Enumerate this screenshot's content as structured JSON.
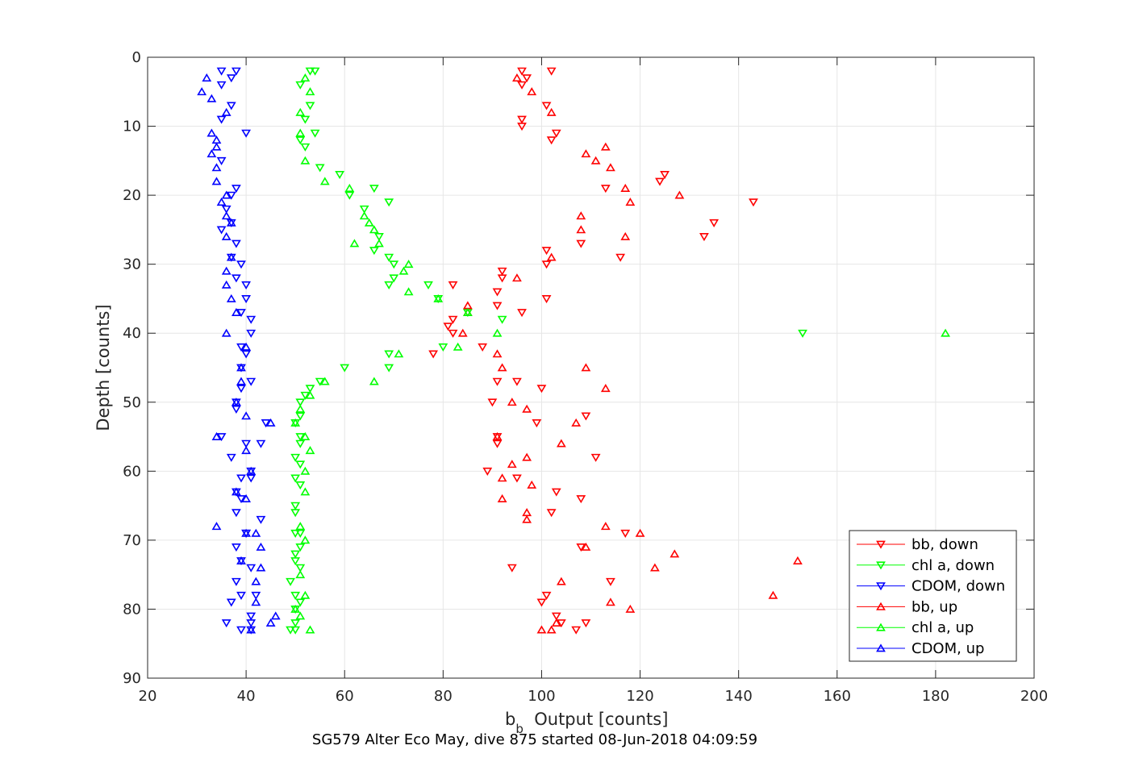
{
  "chart_data": {
    "type": "scatter",
    "xlabel_main": "b",
    "xlabel_sub": "b",
    "xlabel_rest": "  Output [counts]",
    "ylabel": "Depth [counts]",
    "caption": "SG579 Alter Eco May, dive 875 started 08-Jun-2018 04:09:59",
    "xlim": [
      20,
      200
    ],
    "ylim": [
      0,
      90
    ],
    "y_reversed": true,
    "x_ticks": [
      20,
      40,
      60,
      80,
      100,
      120,
      140,
      160,
      180,
      200
    ],
    "y_ticks": [
      0,
      10,
      20,
      30,
      40,
      50,
      60,
      70,
      80,
      90
    ],
    "grid": true,
    "legend_position": "bottom-right",
    "series": [
      {
        "name": "bb, down",
        "color": "#ff0000",
        "marker": "triangle-down",
        "points": [
          [
            96,
            2
          ],
          [
            102,
            2
          ],
          [
            97,
            3
          ],
          [
            96,
            4
          ],
          [
            101,
            7
          ],
          [
            96,
            9
          ],
          [
            96,
            10
          ],
          [
            103,
            11
          ],
          [
            102,
            12
          ],
          [
            125,
            17
          ],
          [
            124,
            18
          ],
          [
            113,
            19
          ],
          [
            143,
            21
          ],
          [
            135,
            24
          ],
          [
            133,
            26
          ],
          [
            108,
            27
          ],
          [
            101,
            28
          ],
          [
            101,
            30
          ],
          [
            116,
            29
          ],
          [
            92,
            31
          ],
          [
            92,
            32
          ],
          [
            82,
            33
          ],
          [
            91,
            34
          ],
          [
            91,
            36
          ],
          [
            101,
            35
          ],
          [
            96,
            37
          ],
          [
            82,
            38
          ],
          [
            81,
            39
          ],
          [
            82,
            40
          ],
          [
            88,
            42
          ],
          [
            78,
            43
          ],
          [
            91,
            47
          ],
          [
            95,
            47
          ],
          [
            100,
            48
          ],
          [
            90,
            50
          ],
          [
            109,
            52
          ],
          [
            99,
            53
          ],
          [
            91,
            55
          ],
          [
            91,
            56
          ],
          [
            111,
            58
          ],
          [
            89,
            60
          ],
          [
            95,
            61
          ],
          [
            103,
            63
          ],
          [
            108,
            64
          ],
          [
            102,
            66
          ],
          [
            117,
            69
          ],
          [
            108,
            71
          ],
          [
            94,
            74
          ],
          [
            114,
            76
          ],
          [
            101,
            78
          ],
          [
            100,
            79
          ],
          [
            103,
            81
          ],
          [
            104,
            82
          ],
          [
            109,
            82
          ],
          [
            107,
            83
          ]
        ]
      },
      {
        "name": "chl a, down",
        "color": "#00ff00",
        "marker": "triangle-down",
        "points": [
          [
            54,
            2
          ],
          [
            53,
            2
          ],
          [
            51,
            4
          ],
          [
            53,
            7
          ],
          [
            52,
            9
          ],
          [
            54,
            11
          ],
          [
            51,
            12
          ],
          [
            52,
            13
          ],
          [
            55,
            16
          ],
          [
            59,
            17
          ],
          [
            66,
            19
          ],
          [
            61,
            20
          ],
          [
            69,
            21
          ],
          [
            64,
            22
          ],
          [
            67,
            26
          ],
          [
            66,
            28
          ],
          [
            69,
            29
          ],
          [
            70,
            30
          ],
          [
            70,
            32
          ],
          [
            69,
            33
          ],
          [
            77,
            33
          ],
          [
            79,
            35
          ],
          [
            85,
            37
          ],
          [
            92,
            38
          ],
          [
            80,
            42
          ],
          [
            153,
            40
          ],
          [
            69,
            43
          ],
          [
            69,
            45
          ],
          [
            60,
            45
          ],
          [
            55,
            47
          ],
          [
            53,
            48
          ],
          [
            52,
            49
          ],
          [
            51,
            50
          ],
          [
            51,
            52
          ],
          [
            50,
            53
          ],
          [
            51,
            55
          ],
          [
            51,
            56
          ],
          [
            50,
            58
          ],
          [
            51,
            59
          ],
          [
            50,
            61
          ],
          [
            51,
            62
          ],
          [
            50,
            65
          ],
          [
            50,
            66
          ],
          [
            51,
            69
          ],
          [
            50,
            69
          ],
          [
            51,
            71
          ],
          [
            50,
            72
          ],
          [
            50,
            73
          ],
          [
            51,
            74
          ],
          [
            49,
            76
          ],
          [
            50,
            78
          ],
          [
            51,
            79
          ],
          [
            50,
            80
          ],
          [
            50,
            82
          ],
          [
            49,
            83
          ],
          [
            50,
            83
          ]
        ]
      },
      {
        "name": "CDOM, down",
        "color": "#0000ff",
        "marker": "triangle-down",
        "points": [
          [
            38,
            2
          ],
          [
            35,
            2
          ],
          [
            37,
            3
          ],
          [
            35,
            4
          ],
          [
            37,
            7
          ],
          [
            35,
            9
          ],
          [
            40,
            11
          ],
          [
            35,
            15
          ],
          [
            38,
            19
          ],
          [
            37,
            20
          ],
          [
            36,
            22
          ],
          [
            37,
            24
          ],
          [
            35,
            25
          ],
          [
            38,
            27
          ],
          [
            37,
            29
          ],
          [
            39,
            30
          ],
          [
            38,
            32
          ],
          [
            40,
            33
          ],
          [
            40,
            35
          ],
          [
            39,
            37
          ],
          [
            41,
            38
          ],
          [
            41,
            40
          ],
          [
            39,
            42
          ],
          [
            40,
            43
          ],
          [
            39,
            45
          ],
          [
            41,
            47
          ],
          [
            39,
            48
          ],
          [
            38,
            50
          ],
          [
            38,
            51
          ],
          [
            44,
            53
          ],
          [
            35,
            55
          ],
          [
            40,
            56
          ],
          [
            43,
            56
          ],
          [
            37,
            58
          ],
          [
            41,
            60
          ],
          [
            39,
            61
          ],
          [
            41,
            61
          ],
          [
            38,
            63
          ],
          [
            39,
            64
          ],
          [
            38,
            66
          ],
          [
            43,
            67
          ],
          [
            40,
            69
          ],
          [
            40,
            69
          ],
          [
            38,
            71
          ],
          [
            39,
            73
          ],
          [
            41,
            74
          ],
          [
            38,
            76
          ],
          [
            39,
            78
          ],
          [
            42,
            78
          ],
          [
            37,
            79
          ],
          [
            41,
            81
          ],
          [
            41,
            82
          ],
          [
            41,
            83
          ],
          [
            39,
            83
          ],
          [
            36,
            82
          ]
        ]
      },
      {
        "name": "bb, up",
        "color": "#ff0000",
        "marker": "triangle-up",
        "points": [
          [
            95,
            3
          ],
          [
            98,
            5
          ],
          [
            102,
            8
          ],
          [
            113,
            13
          ],
          [
            109,
            14
          ],
          [
            111,
            15
          ],
          [
            114,
            16
          ],
          [
            117,
            19
          ],
          [
            128,
            20
          ],
          [
            118,
            21
          ],
          [
            108,
            23
          ],
          [
            108,
            25
          ],
          [
            117,
            26
          ],
          [
            102,
            29
          ],
          [
            95,
            32
          ],
          [
            85,
            36
          ],
          [
            85,
            37
          ],
          [
            84,
            40
          ],
          [
            91,
            43
          ],
          [
            92,
            45
          ],
          [
            109,
            45
          ],
          [
            113,
            48
          ],
          [
            94,
            50
          ],
          [
            97,
            51
          ],
          [
            107,
            53
          ],
          [
            91,
            55
          ],
          [
            104,
            56
          ],
          [
            97,
            58
          ],
          [
            94,
            59
          ],
          [
            92,
            61
          ],
          [
            98,
            62
          ],
          [
            92,
            64
          ],
          [
            97,
            66
          ],
          [
            97,
            67
          ],
          [
            113,
            68
          ],
          [
            120,
            69
          ],
          [
            109,
            71
          ],
          [
            127,
            72
          ],
          [
            152,
            73
          ],
          [
            123,
            74
          ],
          [
            104,
            76
          ],
          [
            147,
            78
          ],
          [
            114,
            79
          ],
          [
            118,
            80
          ],
          [
            103,
            82
          ],
          [
            100,
            83
          ],
          [
            102,
            83
          ]
        ]
      },
      {
        "name": "chl a, up",
        "color": "#00ff00",
        "marker": "triangle-up",
        "points": [
          [
            52,
            3
          ],
          [
            53,
            5
          ],
          [
            51,
            8
          ],
          [
            51,
            11
          ],
          [
            52,
            15
          ],
          [
            56,
            18
          ],
          [
            61,
            19
          ],
          [
            64,
            23
          ],
          [
            65,
            24
          ],
          [
            66,
            25
          ],
          [
            62,
            27
          ],
          [
            67,
            27
          ],
          [
            73,
            30
          ],
          [
            72,
            31
          ],
          [
            73,
            34
          ],
          [
            79,
            35
          ],
          [
            85,
            37
          ],
          [
            91,
            40
          ],
          [
            83,
            42
          ],
          [
            182,
            40
          ],
          [
            71,
            43
          ],
          [
            66,
            47
          ],
          [
            56,
            47
          ],
          [
            53,
            49
          ],
          [
            51,
            51
          ],
          [
            50,
            53
          ],
          [
            52,
            55
          ],
          [
            53,
            57
          ],
          [
            52,
            60
          ],
          [
            52,
            63
          ],
          [
            51,
            68
          ],
          [
            52,
            70
          ],
          [
            51,
            75
          ],
          [
            52,
            78
          ],
          [
            50,
            80
          ],
          [
            51,
            81
          ],
          [
            53,
            83
          ]
        ]
      },
      {
        "name": "CDOM, up",
        "color": "#0000ff",
        "marker": "triangle-up",
        "points": [
          [
            32,
            3
          ],
          [
            31,
            5
          ],
          [
            33,
            6
          ],
          [
            36,
            8
          ],
          [
            33,
            11
          ],
          [
            34,
            12
          ],
          [
            34,
            13
          ],
          [
            33,
            14
          ],
          [
            34,
            16
          ],
          [
            34,
            18
          ],
          [
            36,
            20
          ],
          [
            35,
            21
          ],
          [
            36,
            23
          ],
          [
            37,
            24
          ],
          [
            36,
            26
          ],
          [
            37,
            29
          ],
          [
            36,
            31
          ],
          [
            36,
            33
          ],
          [
            37,
            35
          ],
          [
            38,
            37
          ],
          [
            36,
            40
          ],
          [
            40,
            42
          ],
          [
            39,
            45
          ],
          [
            39,
            47
          ],
          [
            38,
            50
          ],
          [
            40,
            52
          ],
          [
            45,
            53
          ],
          [
            34,
            55
          ],
          [
            40,
            57
          ],
          [
            41,
            60
          ],
          [
            38,
            63
          ],
          [
            40,
            64
          ],
          [
            34,
            68
          ],
          [
            40,
            69
          ],
          [
            42,
            69
          ],
          [
            39,
            73
          ],
          [
            43,
            71
          ],
          [
            43,
            74
          ],
          [
            42,
            76
          ],
          [
            42,
            79
          ],
          [
            46,
            81
          ],
          [
            45,
            82
          ],
          [
            41,
            83
          ]
        ]
      }
    ]
  }
}
